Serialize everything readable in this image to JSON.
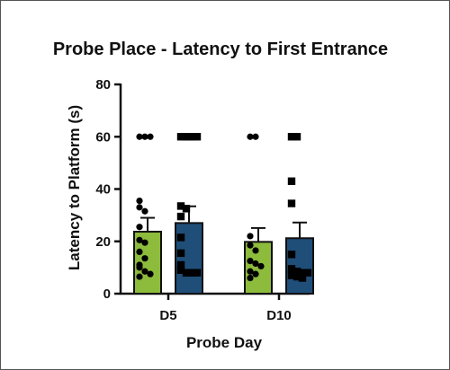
{
  "chart_data": {
    "type": "bar",
    "title": "Probe Place -  Latency to First Entrance",
    "xlabel": "Probe Day",
    "ylabel": "Latency to Platform (s)",
    "ylim": [
      0,
      80
    ],
    "yticks": [
      0,
      20,
      40,
      60,
      80
    ],
    "categories": [
      "D5",
      "D10"
    ],
    "grid": false,
    "colors": {
      "series1": "#8dbb3c",
      "series2": "#1f4e79",
      "points": "#000000"
    },
    "series": [
      {
        "marker": "circle",
        "values": [
          23.7,
          19.8
        ],
        "error": [
          5.3,
          5.3
        ],
        "points": [
          [
            60,
            60,
            60,
            35.5,
            33,
            31.5,
            25.5,
            20.5,
            19.5,
            16,
            13.5,
            11,
            10,
            8.5,
            7.5,
            6.5
          ],
          [
            60,
            60,
            22,
            18.5,
            16.5,
            12.5,
            11.5,
            10.5,
            8.5,
            7.5,
            6
          ]
        ]
      },
      {
        "marker": "square",
        "values": [
          27,
          21.2
        ],
        "error": [
          6.4,
          6
        ],
        "points": [
          [
            60,
            60,
            60,
            60,
            60,
            33.5,
            32.5,
            29.5,
            21.5,
            15.5,
            11,
            9,
            8,
            8,
            8,
            8
          ],
          [
            60,
            60,
            43,
            34.5,
            15,
            9.5,
            8.5,
            8,
            8,
            7.5,
            7,
            6.5,
            6
          ]
        ]
      }
    ]
  }
}
